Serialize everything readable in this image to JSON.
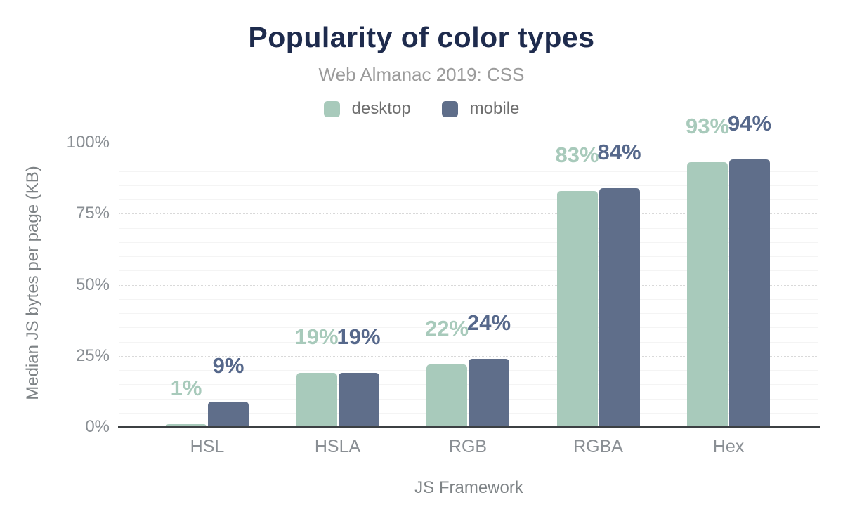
{
  "chart_data": {
    "type": "bar",
    "title": "Popularity of color types",
    "subtitle": "Web Almanac 2019: CSS",
    "categories": [
      "HSL",
      "HSLA",
      "RGB",
      "RGBA",
      "Hex"
    ],
    "series": [
      {
        "name": "desktop",
        "color": "#a8cabb",
        "label_color": "#a8cabb",
        "values": [
          1,
          19,
          22,
          83,
          93
        ]
      },
      {
        "name": "mobile",
        "color": "#5f6e8a",
        "label_color": "#56688b",
        "values": [
          9,
          19,
          24,
          84,
          94
        ]
      }
    ],
    "value_suffix": "%",
    "xlabel": "JS Framework",
    "ylabel": "Median JS bytes per page (KB)",
    "ylim": [
      0,
      100
    ],
    "yticks": [
      0,
      25,
      50,
      75,
      100
    ],
    "ytick_labels": [
      "0%",
      "25%",
      "50%",
      "75%",
      "100%"
    ],
    "grid": {
      "on": true,
      "minor_step": 5,
      "major_step": 25
    },
    "legend_position": "top"
  },
  "colors": {
    "title": "#1e2b4d",
    "subtitle": "#9b9b9b",
    "legend_text": "#6f6f6f",
    "tick_label": "#8a8f94",
    "axis_title": "#7e8386",
    "axis_line": "#3c4043",
    "grid_major": "#d9d9d9",
    "grid_minor": "#f4f4f4",
    "background": "#ffffff"
  }
}
